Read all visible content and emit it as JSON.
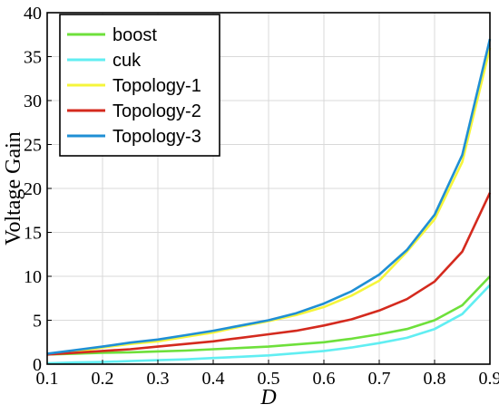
{
  "chart_data": {
    "type": "line",
    "title": "",
    "xlabel": "D",
    "ylabel": "Voltage Gain",
    "xlim": [
      0.1,
      0.9
    ],
    "ylim": [
      0,
      40
    ],
    "xticks": [
      "0.1",
      "0.2",
      "0.3",
      "0.4",
      "0.5",
      "0.6",
      "0.7",
      "0.8",
      "0.9"
    ],
    "yticks": [
      "0",
      "5",
      "10",
      "15",
      "20",
      "25",
      "30",
      "35",
      "40"
    ],
    "grid": true,
    "legend_position": "top-left",
    "x": [
      0.1,
      0.15,
      0.2,
      0.25,
      0.3,
      0.35,
      0.4,
      0.45,
      0.5,
      0.55,
      0.6,
      0.65,
      0.7,
      0.75,
      0.8,
      0.85,
      0.9
    ],
    "series": [
      {
        "name": "boost",
        "color": "#6ee03b",
        "values": [
          1.1,
          1.2,
          1.3,
          1.35,
          1.45,
          1.55,
          1.7,
          1.85,
          2.0,
          2.25,
          2.5,
          2.9,
          3.4,
          4.0,
          5.0,
          6.7,
          10.0
        ]
      },
      {
        "name": "cuk",
        "color": "#61eef2",
        "values": [
          0.1,
          0.2,
          0.25,
          0.35,
          0.45,
          0.55,
          0.7,
          0.85,
          1.0,
          1.25,
          1.5,
          1.9,
          2.4,
          3.0,
          4.0,
          5.7,
          9.0
        ]
      },
      {
        "name": "Topology-1",
        "color": "#f5f53b",
        "values": [
          1.1,
          1.4,
          1.9,
          2.3,
          2.6,
          3.1,
          3.6,
          4.3,
          4.9,
          5.6,
          6.5,
          7.8,
          9.5,
          12.8,
          16.5,
          23.0,
          36.0
        ]
      },
      {
        "name": "Topology-2",
        "color": "#d42a1e",
        "values": [
          1.1,
          1.3,
          1.5,
          1.7,
          2.0,
          2.3,
          2.6,
          3.0,
          3.4,
          3.8,
          4.4,
          5.1,
          6.1,
          7.4,
          9.4,
          12.8,
          19.5
        ]
      },
      {
        "name": "Topology-3",
        "color": "#1f8fd4",
        "values": [
          1.2,
          1.6,
          2.0,
          2.45,
          2.8,
          3.3,
          3.8,
          4.4,
          5.0,
          5.8,
          6.9,
          8.3,
          10.2,
          13.0,
          17.0,
          23.8,
          37.0
        ]
      }
    ]
  }
}
